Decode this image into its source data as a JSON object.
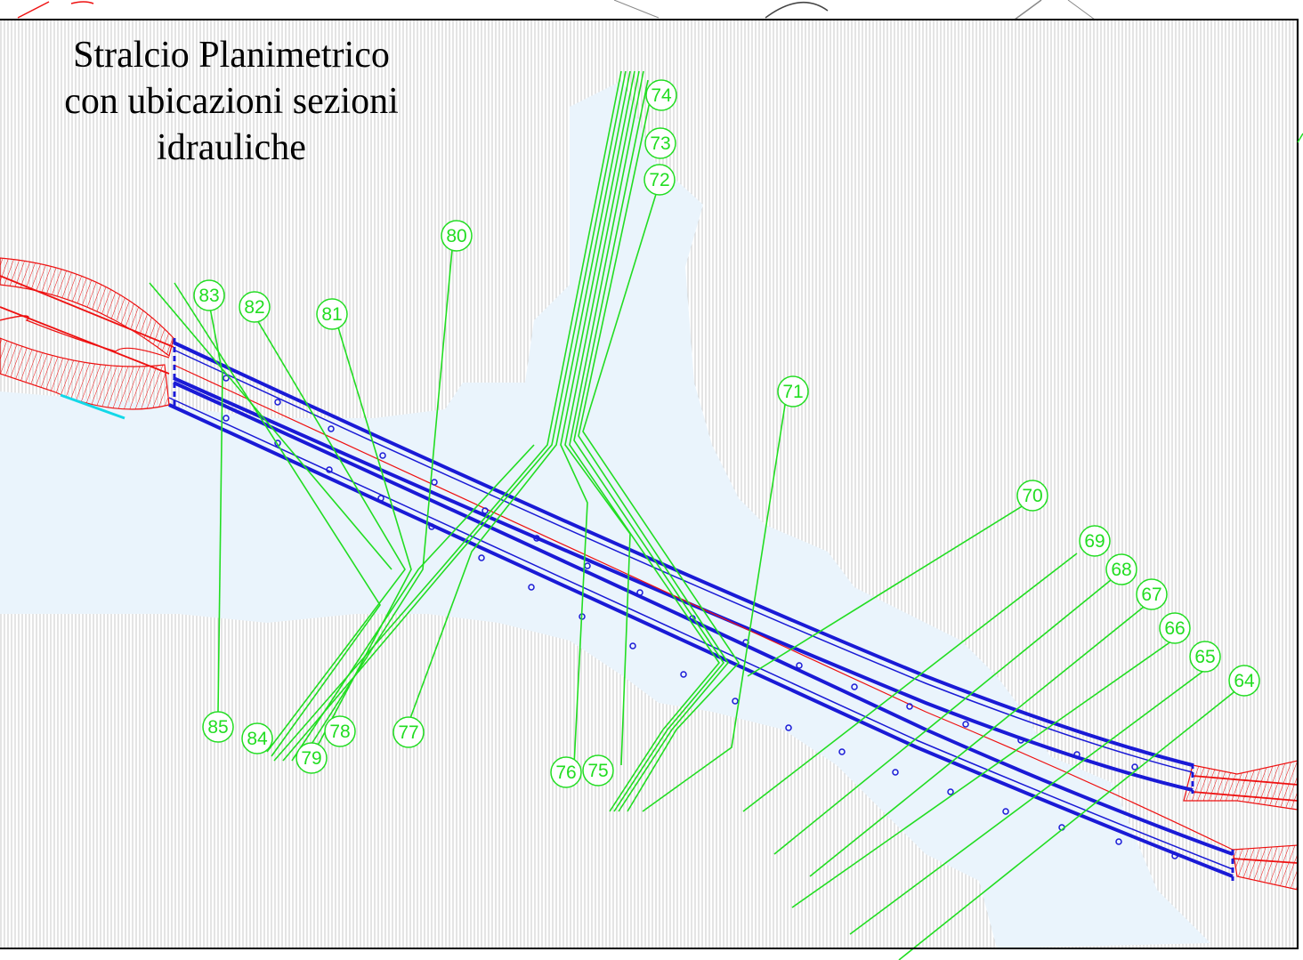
{
  "title": {
    "line1": "Stralcio Planimetrico",
    "line2": "con ubicazioni sezioni",
    "line3": "idrauliche"
  },
  "colors": {
    "background": "#ffffff",
    "hatch": "#c8c8c8",
    "water": "#e8f3fb",
    "section_line": "#22dd22",
    "bridge": "#1a1ad6",
    "road": "#ee1111",
    "accent_cyan": "#12d8e8",
    "frame": "#000000"
  },
  "sections": [
    "64",
    "65",
    "66",
    "67",
    "68",
    "69",
    "70",
    "71",
    "72",
    "73",
    "74",
    "75",
    "76",
    "77",
    "78",
    "79",
    "80",
    "81",
    "82",
    "83",
    "84",
    "85"
  ]
}
